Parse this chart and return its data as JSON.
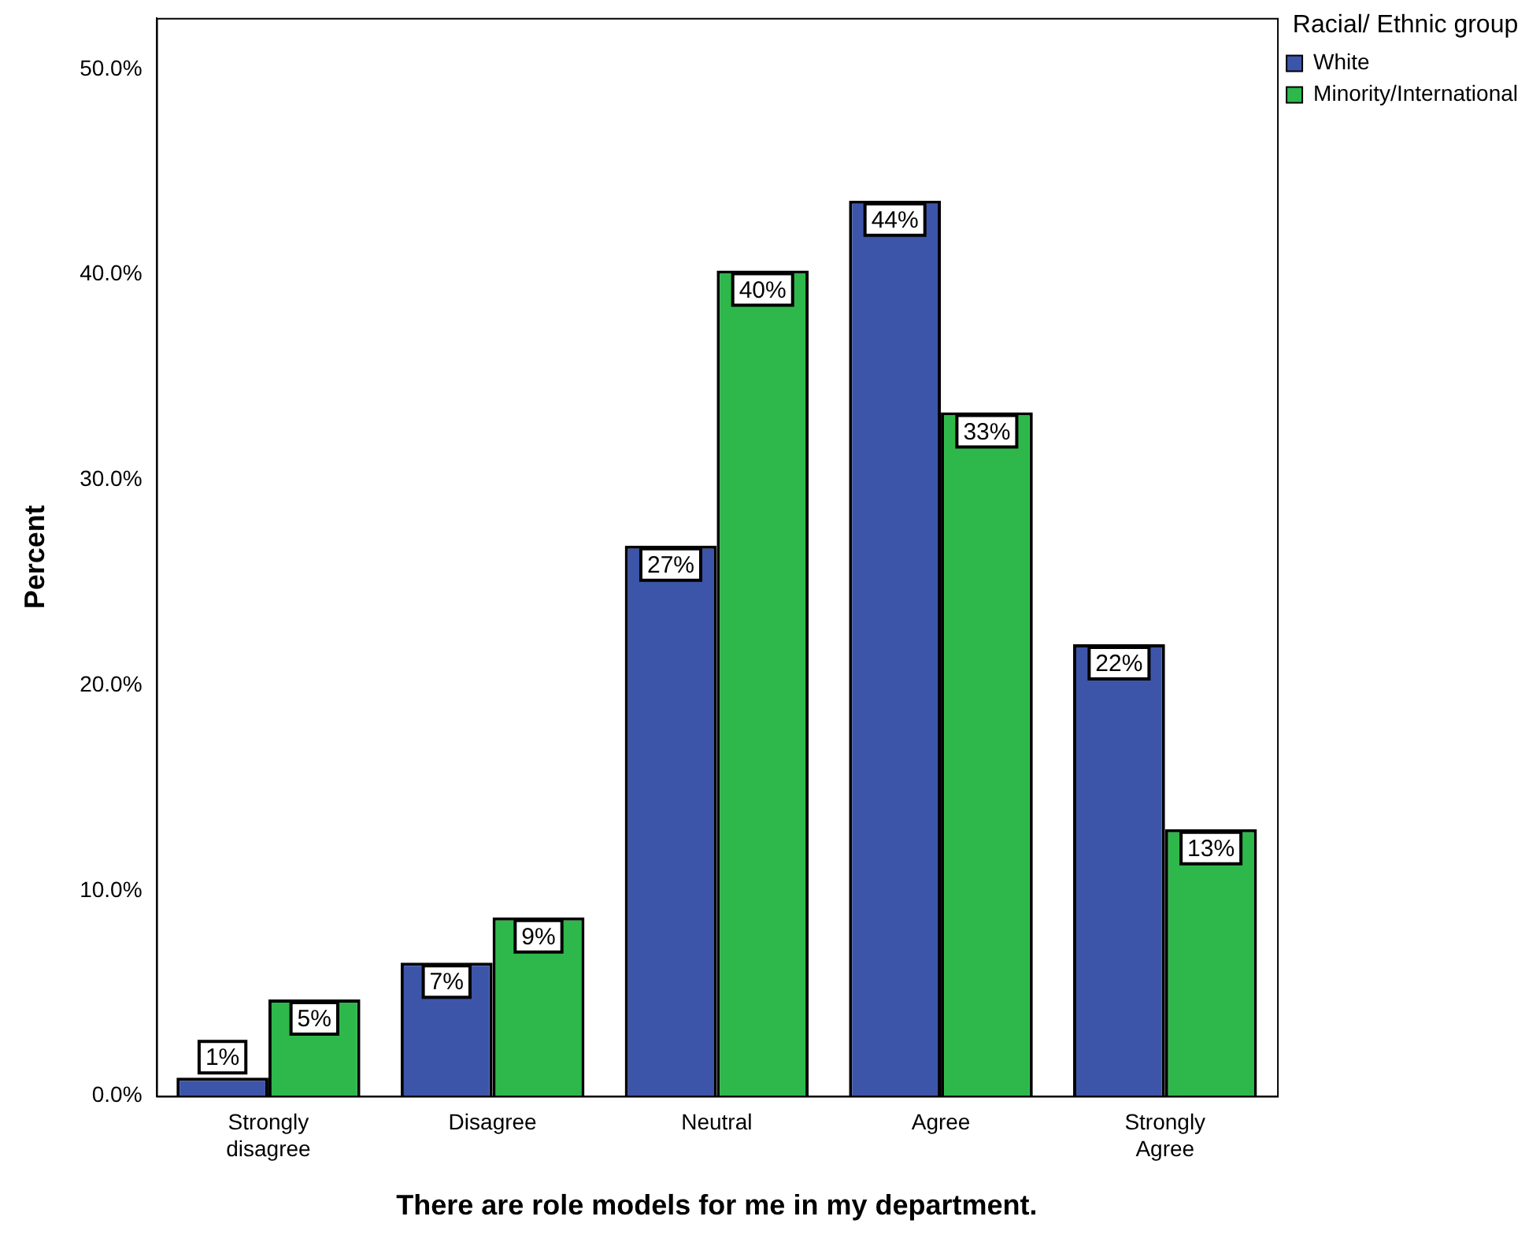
{
  "chart_data": {
    "type": "bar",
    "xlabel": "There are role models for me in my department.",
    "ylabel": "Percent",
    "legend_title": "Racial/ Ethnic group",
    "legend": "top right",
    "grid": false,
    "categories": [
      "Strongly disagree",
      "Disagree",
      "Neutral",
      "Agree",
      "Strongly Agree"
    ],
    "ylim": [
      0,
      52.5
    ],
    "yticks": [
      {
        "value": 0,
        "label": "0.0%"
      },
      {
        "value": 10,
        "label": "10.0%"
      },
      {
        "value": 20,
        "label": "20.0%"
      },
      {
        "value": 30,
        "label": "30.0%"
      },
      {
        "value": 40,
        "label": "40.0%"
      },
      {
        "value": 50,
        "label": "50.0%"
      }
    ],
    "series": [
      {
        "name": "White",
        "color": "#3d55a9",
        "values": [
          0.9,
          6.5,
          26.8,
          43.6,
          22.0
        ],
        "value_labels": [
          "1%",
          "7%",
          "27%",
          "44%",
          "22%"
        ]
      },
      {
        "name": "Minority/International",
        "color": "#2eb84b",
        "values": [
          4.7,
          8.7,
          40.2,
          33.3,
          13.0
        ],
        "value_labels": [
          "5%",
          "9%",
          "40%",
          "33%",
          "13%"
        ]
      }
    ]
  }
}
